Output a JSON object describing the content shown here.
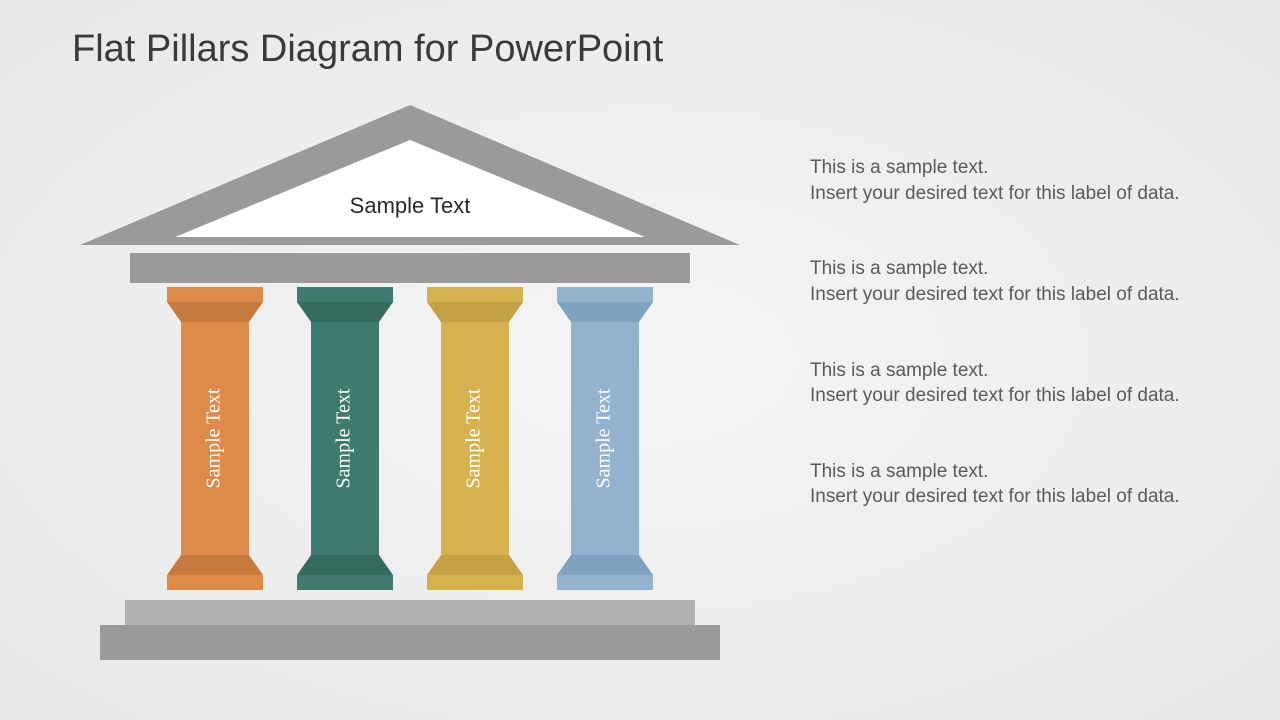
{
  "title": "Flat Pillars Diagram for PowerPoint",
  "diagram": {
    "type": "infographic",
    "structure_color": "#9a9a9a",
    "structure_color_dark": "#8a8a8a",
    "background": "#f0f0f0",
    "roof": {
      "label": "Sample Text",
      "label_fontsize": 22,
      "label_color": "#2a2a2a",
      "inner_fill": "#ffffff"
    },
    "pillars": [
      {
        "label": "Sample Text",
        "color": "#dd8a4a",
        "color_dark": "#c77a3d"
      },
      {
        "label": "Sample Text",
        "color": "#3f7a6e",
        "color_dark": "#356a5f"
      },
      {
        "label": "Sample Text",
        "color": "#d6b24f",
        "color_dark": "#c4a243"
      },
      {
        "label": "Sample Text",
        "color": "#92b2ce",
        "color_dark": "#7fa2c0"
      }
    ],
    "pillar_label_font": "Georgia, serif",
    "pillar_label_color": "#ffffff",
    "pillar_label_fontsize": 20
  },
  "descriptions": [
    {
      "line1": "This is a sample text.",
      "line2": "Insert your desired text for this label of data."
    },
    {
      "line1": "This is a sample text.",
      "line2": "Insert your desired text for this label of data."
    },
    {
      "line1": "This is a sample text.",
      "line2": "Insert your desired text for this label of data."
    },
    {
      "line1": "This is a sample text.",
      "line2": "Insert your desired text for this label of data."
    }
  ],
  "desc_fontsize": 19,
  "desc_color": "#5a5a5a"
}
